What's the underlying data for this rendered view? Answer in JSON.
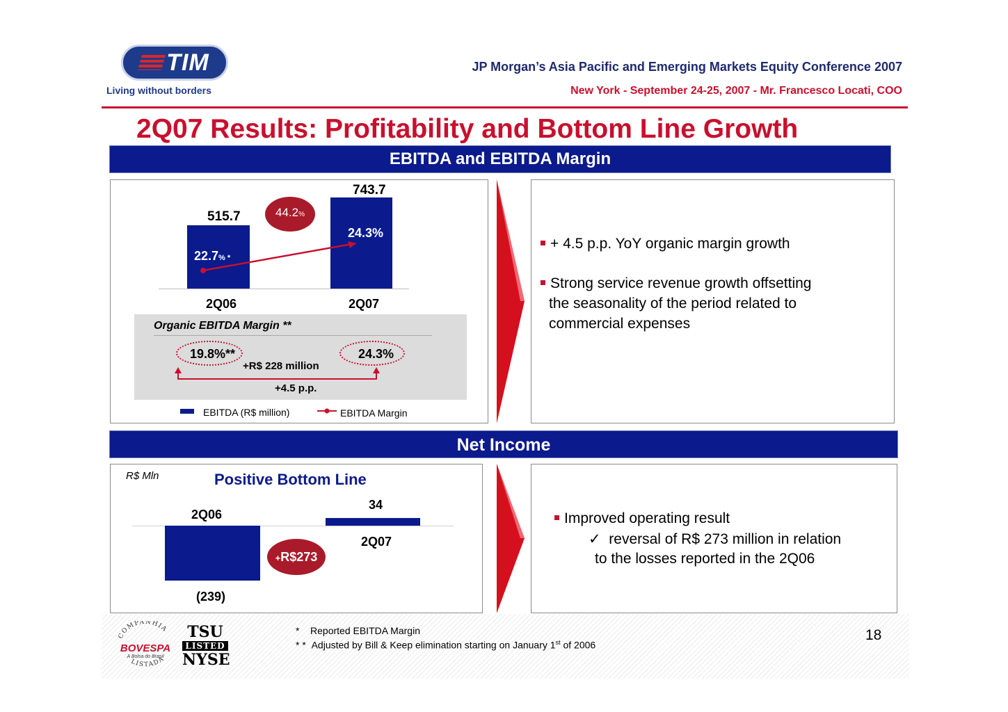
{
  "header": {
    "logo_text": "TIM",
    "tagline": "Living without borders",
    "conference": "JP Morgan’s Asia Pacific and Emerging Markets Equity Conference 2007",
    "location": "New York - September 24-25, 2007 -  Mr. Francesco Locati, COO"
  },
  "slide_title": "2Q07 Results: Profitability and Bottom Line Growth",
  "ebitda": {
    "band_title": "EBITDA and EBITDA Margin",
    "bars": [
      {
        "period": "2Q06",
        "value_label": "515.7",
        "value": 515.7,
        "margin_label": "22.7",
        "margin_suffix": "% *"
      },
      {
        "period": "2Q07",
        "value_label": "743.7",
        "value": 743.7,
        "margin_label": "24.3%"
      }
    ],
    "growth_pill": {
      "value": "44.2",
      "unit": "%"
    },
    "organic": {
      "label": "Organic EBITDA Margin **",
      "from": "19.8%**",
      "to": "24.3%",
      "delta_money": "+R$ 228 million",
      "delta_pp": "+4.5 p.p."
    },
    "legend": {
      "bar": "EBITDA (R$ million)",
      "line": "EBITDA Margin"
    },
    "comments": [
      "+ 4.5 p.p. YoY organic margin growth",
      "Strong service revenue growth offsetting",
      "the seasonality of the period related to",
      "commercial expenses"
    ]
  },
  "net_income": {
    "band_title": "Net Income",
    "unit": "R$ Mln",
    "chart_title": "Positive Bottom Line",
    "bars": [
      {
        "period": "2Q06",
        "value_label": "(239)",
        "value": -239
      },
      {
        "period": "2Q07",
        "value_label": "34",
        "value": 34
      }
    ],
    "delta_pill": {
      "prefix": "+",
      "value": "R$273"
    },
    "comments": {
      "bullet": "Improved operating result",
      "check": "✓",
      "line1": "reversal of R$ 273 million in relation",
      "line2": "to the losses reported in the 2Q06"
    }
  },
  "footer": {
    "note1_mark": "*",
    "note1": "Reported EBITDA Margin",
    "note2_mark": "* *",
    "note2_pre": "Adjusted by Bill & Keep elimination starting on January 1",
    "note2_sup": "st",
    "note2_post": " of 2006",
    "page": "18",
    "bovespa": {
      "top": "COMPANHIA",
      "name": "BOVESPA",
      "sub": "A Bolsa do Brasil",
      "bottom": "LISTADA"
    },
    "nyse": {
      "line1": "TSU",
      "line2": "LISTED",
      "line3": "NYSE"
    }
  },
  "chart_data": [
    {
      "type": "bar",
      "categories": [
        "2Q06",
        "2Q07"
      ],
      "series": [
        {
          "name": "EBITDA (R$ million)",
          "values": [
            515.7,
            743.7
          ]
        },
        {
          "name": "EBITDA Margin",
          "values": [
            22.7,
            24.3
          ]
        }
      ],
      "annotations": [
        "44.2%",
        "Organic EBITDA Margin ** 19.8%** → 24.3%",
        "+R$ 228 million",
        "+4.5 p.p."
      ]
    },
    {
      "type": "bar",
      "title": "Positive Bottom Line",
      "ylabel": "R$ Mln",
      "categories": [
        "2Q06",
        "2Q07"
      ],
      "values": [
        -239,
        34
      ],
      "annotations": [
        "+R$273"
      ]
    }
  ],
  "colors": {
    "navy": "#0b1a8c",
    "red": "#c8102e",
    "pill": "#a91b2a"
  }
}
